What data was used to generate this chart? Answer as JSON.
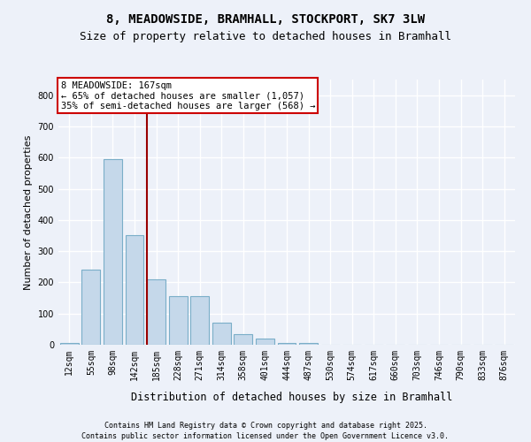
{
  "title1": "8, MEADOWSIDE, BRAMHALL, STOCKPORT, SK7 3LW",
  "title2": "Size of property relative to detached houses in Bramhall",
  "xlabel": "Distribution of detached houses by size in Bramhall",
  "ylabel": "Number of detached properties",
  "categories": [
    "12sqm",
    "55sqm",
    "98sqm",
    "142sqm",
    "185sqm",
    "228sqm",
    "271sqm",
    "314sqm",
    "358sqm",
    "401sqm",
    "444sqm",
    "487sqm",
    "530sqm",
    "574sqm",
    "617sqm",
    "660sqm",
    "703sqm",
    "746sqm",
    "790sqm",
    "833sqm",
    "876sqm"
  ],
  "values": [
    5,
    240,
    595,
    350,
    210,
    155,
    155,
    70,
    35,
    20,
    5,
    5,
    0,
    0,
    0,
    0,
    0,
    0,
    0,
    0,
    0
  ],
  "bar_color": "#c5d8ea",
  "bar_edge_color": "#7aaec8",
  "vline_color": "#990000",
  "annotation_text": "8 MEADOWSIDE: 167sqm\n← 65% of detached houses are smaller (1,057)\n35% of semi-detached houses are larger (568) →",
  "annotation_box_facecolor": "#ffffff",
  "annotation_box_edgecolor": "#cc0000",
  "ylim": [
    0,
    850
  ],
  "yticks": [
    0,
    100,
    200,
    300,
    400,
    500,
    600,
    700,
    800
  ],
  "footer1": "Contains HM Land Registry data © Crown copyright and database right 2025.",
  "footer2": "Contains public sector information licensed under the Open Government Licence v3.0.",
  "bg_color": "#edf1f9",
  "plot_bg_color": "#edf1f9",
  "grid_color": "#ffffff",
  "title_fontsize": 10,
  "subtitle_fontsize": 9,
  "tick_fontsize": 7,
  "ylabel_fontsize": 8,
  "xlabel_fontsize": 8.5,
  "ann_fontsize": 7.5,
  "footer_fontsize": 6
}
